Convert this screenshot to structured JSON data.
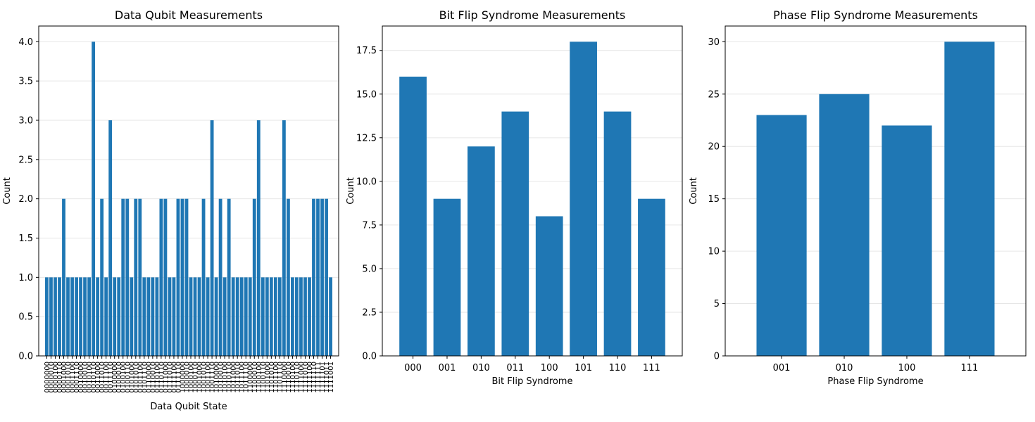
{
  "chart_data": [
    {
      "type": "bar",
      "title": "Data Qubit Measurements",
      "xlabel": "Data Qubit State",
      "ylabel": "Count",
      "ylim": [
        0,
        4.2
      ],
      "yticks": [
        "0.0",
        "0.5",
        "1.0",
        "1.5",
        "2.0",
        "2.5",
        "3.0",
        "3.5",
        "4.0"
      ],
      "ytick_values": [
        0,
        0.5,
        1.0,
        1.5,
        2.0,
        2.5,
        3.0,
        3.5,
        4.0
      ],
      "categories": [
        "0000000",
        "0000010",
        "0000100",
        "0000110",
        "0001000",
        "0001010",
        "0001100",
        "0001110",
        "0010000",
        "0010010",
        "0010100",
        "0010110",
        "0011000",
        "0011010",
        "0011100",
        "0011110",
        "0100000",
        "0100010",
        "0100100",
        "0100110",
        "0101000",
        "0101010",
        "0101100",
        "0101110",
        "0110000",
        "0110010",
        "0110100",
        "0110110",
        "0111000",
        "0111010",
        "0111100",
        "0111110",
        "1000000",
        "1000010",
        "1000100",
        "1000110",
        "1001000",
        "1001010",
        "1001100",
        "1001110",
        "1010000",
        "1010010",
        "1010100",
        "1010110",
        "1011000",
        "1011010",
        "1011100",
        "1011110",
        "1100000",
        "1100010",
        "1100100",
        "1100110",
        "1101000",
        "1101010",
        "1101100",
        "1101110",
        "1110000",
        "1110010",
        "1110100",
        "1110110",
        "1111000",
        "1111010",
        "1111100",
        "1111110",
        "1111111",
        "1111101",
        "1111011",
        "1111001"
      ],
      "values": [
        1,
        1,
        1,
        1,
        2,
        1,
        1,
        1,
        1,
        1,
        1,
        4,
        1,
        2,
        1,
        3,
        1,
        1,
        2,
        2,
        1,
        2,
        2,
        1,
        1,
        1,
        1,
        2,
        2,
        1,
        1,
        2,
        2,
        2,
        1,
        1,
        1,
        2,
        1,
        3,
        1,
        2,
        1,
        2,
        1,
        1,
        1,
        1,
        1,
        2,
        3,
        1,
        1,
        1,
        1,
        1,
        3,
        2,
        1,
        1,
        1,
        1,
        1,
        2,
        2,
        2,
        2,
        1
      ],
      "color": "#1f77b4",
      "grid": "y"
    },
    {
      "type": "bar",
      "title": "Bit Flip Syndrome Measurements",
      "xlabel": "Bit Flip Syndrome",
      "ylabel": "Count",
      "ylim": [
        0,
        18.9
      ],
      "yticks": [
        "0.0",
        "2.5",
        "5.0",
        "7.5",
        "10.0",
        "12.5",
        "15.0",
        "17.5"
      ],
      "ytick_values": [
        0,
        2.5,
        5.0,
        7.5,
        10.0,
        12.5,
        15.0,
        17.5
      ],
      "categories": [
        "000",
        "001",
        "010",
        "011",
        "100",
        "101",
        "110",
        "111"
      ],
      "values": [
        16,
        9,
        12,
        14,
        8,
        18,
        14,
        9
      ],
      "color": "#1f77b4",
      "grid": "y"
    },
    {
      "type": "bar",
      "title": "Phase Flip Syndrome Measurements",
      "xlabel": "Phase Flip Syndrome",
      "ylabel": "Count",
      "ylim": [
        0,
        31.5
      ],
      "yticks": [
        "0",
        "5",
        "10",
        "15",
        "20",
        "25",
        "30"
      ],
      "ytick_values": [
        0,
        5,
        10,
        15,
        20,
        25,
        30
      ],
      "categories": [
        "001",
        "010",
        "100",
        "111"
      ],
      "values": [
        23,
        25,
        22,
        30
      ],
      "color": "#1f77b4",
      "grid": "y"
    }
  ]
}
